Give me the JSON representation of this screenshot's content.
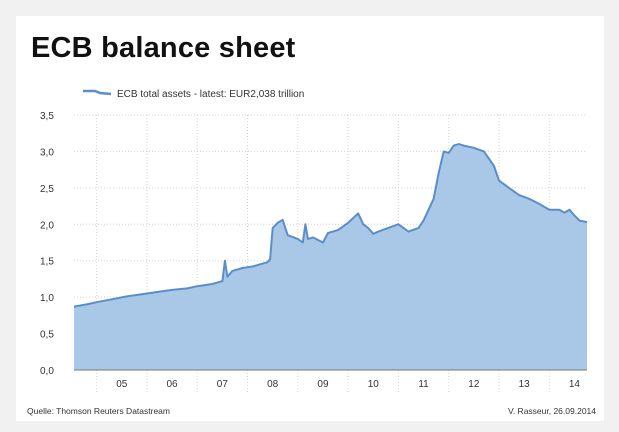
{
  "chart_data": {
    "type": "area",
    "title": "ECB balance sheet",
    "legend": {
      "label": "ECB total assets - latest: EUR2,038 trillion",
      "placement": "top-left"
    },
    "color": "#5b8ec9",
    "fill_color": "#a9c8e8",
    "ylim": [
      0,
      3.5
    ],
    "yticks": [
      "0,0",
      "0,5",
      "1,0",
      "1,5",
      "2,0",
      "2,5",
      "3,0",
      "3,5"
    ],
    "ytick_values": [
      0,
      0.5,
      1.0,
      1.5,
      2.0,
      2.5,
      3.0,
      3.5
    ],
    "xlim": [
      2004.55,
      2014.75
    ],
    "xtick_labels": [
      "05",
      "06",
      "07",
      "08",
      "09",
      "10",
      "11",
      "12",
      "13",
      "14"
    ],
    "xtick_centers": [
      2005.5,
      2006.5,
      2007.5,
      2008.5,
      2009.5,
      2010.5,
      2011.5,
      2012.5,
      2013.5,
      2014.5
    ],
    "year_boundaries": [
      2005,
      2006,
      2007,
      2008,
      2009,
      2010,
      2011,
      2012,
      2013,
      2014
    ],
    "grid": true,
    "series": [
      {
        "name": "ECB total assets",
        "x": [
          2004.55,
          2004.8,
          2005.0,
          2005.3,
          2005.6,
          2005.9,
          2006.2,
          2006.5,
          2006.8,
          2007.0,
          2007.3,
          2007.5,
          2007.55,
          2007.6,
          2007.7,
          2007.9,
          2008.1,
          2008.2,
          2008.3,
          2008.4,
          2008.45,
          2008.5,
          2008.6,
          2008.7,
          2008.8,
          2009.0,
          2009.1,
          2009.15,
          2009.2,
          2009.3,
          2009.5,
          2009.6,
          2009.8,
          2010.0,
          2010.2,
          2010.3,
          2010.4,
          2010.5,
          2010.6,
          2010.8,
          2011.0,
          2011.2,
          2011.4,
          2011.5,
          2011.6,
          2011.7,
          2011.8,
          2011.9,
          2012.0,
          2012.1,
          2012.2,
          2012.3,
          2012.5,
          2012.7,
          2012.9,
          2013.0,
          2013.2,
          2013.4,
          2013.6,
          2013.8,
          2014.0,
          2014.2,
          2014.3,
          2014.4,
          2014.5,
          2014.6,
          2014.75
        ],
        "y": [
          0.87,
          0.9,
          0.93,
          0.97,
          1.01,
          1.04,
          1.07,
          1.1,
          1.12,
          1.15,
          1.18,
          1.22,
          1.5,
          1.28,
          1.36,
          1.4,
          1.42,
          1.44,
          1.46,
          1.48,
          1.52,
          1.95,
          2.02,
          2.06,
          1.85,
          1.8,
          1.75,
          2.0,
          1.8,
          1.82,
          1.75,
          1.88,
          1.92,
          2.02,
          2.15,
          2.0,
          1.95,
          1.87,
          1.9,
          1.95,
          2.0,
          1.9,
          1.95,
          2.05,
          2.2,
          2.35,
          2.7,
          3.0,
          2.98,
          3.08,
          3.1,
          3.08,
          3.05,
          3.0,
          2.8,
          2.6,
          2.5,
          2.4,
          2.35,
          2.28,
          2.2,
          2.2,
          2.16,
          2.2,
          2.12,
          2.05,
          2.03
        ]
      }
    ]
  },
  "footer": {
    "source": "Quelle: Thomson Reuters Datastream",
    "credit": "V. Rasseur, 26.09.2014"
  }
}
